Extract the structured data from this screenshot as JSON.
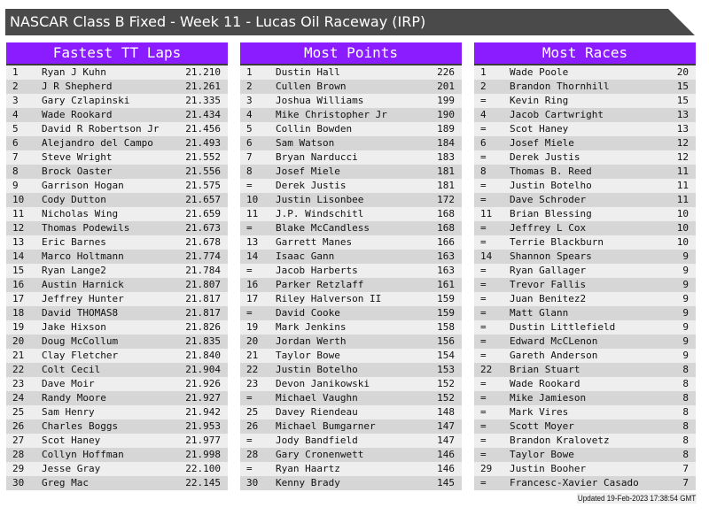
{
  "title": "NASCAR Class B Fixed - Week 11 - Lucas Oil Raceway (IRP)",
  "colors": {
    "header": "#8a1cff",
    "titlebar": "#4a4a4a",
    "row_light": "#eeeeee",
    "row_dark": "#d6d6d6"
  },
  "tables": [
    {
      "heading": "Fastest TT Laps",
      "rows": [
        [
          "1",
          "Ryan J Kuhn",
          "21.210"
        ],
        [
          "2",
          "J R Shepherd",
          "21.261"
        ],
        [
          "3",
          "Gary Czlapinski",
          "21.335"
        ],
        [
          "4",
          "Wade Rookard",
          "21.434"
        ],
        [
          "5",
          "David R Robertson Jr",
          "21.456"
        ],
        [
          "6",
          "Alejandro del Campo",
          "21.493"
        ],
        [
          "7",
          "Steve Wright",
          "21.552"
        ],
        [
          "8",
          "Brock Oaster",
          "21.556"
        ],
        [
          "9",
          "Garrison Hogan",
          "21.575"
        ],
        [
          "10",
          "Cody Dutton",
          "21.657"
        ],
        [
          "11",
          "Nicholas Wing",
          "21.659"
        ],
        [
          "12",
          "Thomas Podewils",
          "21.673"
        ],
        [
          "13",
          "Eric Barnes",
          "21.678"
        ],
        [
          "14",
          "Marco Holtmann",
          "21.774"
        ],
        [
          "15",
          "Ryan Lange2",
          "21.784"
        ],
        [
          "16",
          "Austin Harnick",
          "21.807"
        ],
        [
          "17",
          "Jeffrey Hunter",
          "21.817"
        ],
        [
          "18",
          "David THOMAS8",
          "21.817"
        ],
        [
          "19",
          "Jake Hixson",
          "21.826"
        ],
        [
          "20",
          "Doug McCollum",
          "21.835"
        ],
        [
          "21",
          "Clay Fletcher",
          "21.840"
        ],
        [
          "22",
          "Colt Cecil",
          "21.904"
        ],
        [
          "23",
          "Dave Moir",
          "21.926"
        ],
        [
          "24",
          "Randy Moore",
          "21.927"
        ],
        [
          "25",
          "Sam Henry",
          "21.942"
        ],
        [
          "26",
          "Charles Boggs",
          "21.953"
        ],
        [
          "27",
          "Scot Haney",
          "21.977"
        ],
        [
          "28",
          "Collyn Hoffman",
          "21.998"
        ],
        [
          "29",
          "Jesse Gray",
          "22.100"
        ],
        [
          "30",
          "Greg Mac",
          "22.145"
        ]
      ]
    },
    {
      "heading": "Most Points",
      "rows": [
        [
          "1",
          "Dustin Hall",
          "226"
        ],
        [
          "2",
          "Cullen Brown",
          "201"
        ],
        [
          "3",
          "Joshua Williams",
          "199"
        ],
        [
          "4",
          "Mike Christopher Jr",
          "190"
        ],
        [
          "5",
          "Collin Bowden",
          "189"
        ],
        [
          "6",
          "Sam Watson",
          "184"
        ],
        [
          "7",
          "Bryan Narducci",
          "183"
        ],
        [
          "8",
          "Josef Miele",
          "181"
        ],
        [
          "=",
          "Derek Justis",
          "181"
        ],
        [
          "10",
          "Justin Lisonbee",
          "172"
        ],
        [
          "11",
          "J.P. Windschitl",
          "168"
        ],
        [
          "=",
          "Blake McCandless",
          "168"
        ],
        [
          "13",
          "Garrett Manes",
          "166"
        ],
        [
          "14",
          "Isaac Gann",
          "163"
        ],
        [
          "=",
          "Jacob Harberts",
          "163"
        ],
        [
          "16",
          "Parker Retzlaff",
          "161"
        ],
        [
          "17",
          "Riley Halverson II",
          "159"
        ],
        [
          "=",
          "David Cooke",
          "159"
        ],
        [
          "19",
          "Mark Jenkins",
          "158"
        ],
        [
          "20",
          "Jordan Werth",
          "156"
        ],
        [
          "21",
          "Taylor Bowe",
          "154"
        ],
        [
          "22",
          "Justin Botelho",
          "153"
        ],
        [
          "23",
          "Devon Janikowski",
          "152"
        ],
        [
          "=",
          "Michael Vaughn",
          "152"
        ],
        [
          "25",
          "Davey Riendeau",
          "148"
        ],
        [
          "26",
          "Michael Bumgarner",
          "147"
        ],
        [
          "=",
          "Jody Bandfield",
          "147"
        ],
        [
          "28",
          "Gary Cronenwett",
          "146"
        ],
        [
          "=",
          "Ryan Haartz",
          "146"
        ],
        [
          "30",
          "Kenny Brady",
          "145"
        ]
      ]
    },
    {
      "heading": "Most Races",
      "rows": [
        [
          "1",
          "Wade Poole",
          "20"
        ],
        [
          "2",
          "Brandon Thornhill",
          "15"
        ],
        [
          "=",
          "Kevin Ring",
          "15"
        ],
        [
          "4",
          "Jacob Cartwright",
          "13"
        ],
        [
          "=",
          "Scot Haney",
          "13"
        ],
        [
          "6",
          "Josef Miele",
          "12"
        ],
        [
          "=",
          "Derek Justis",
          "12"
        ],
        [
          "8",
          "Thomas B. Reed",
          "11"
        ],
        [
          "=",
          "Justin Botelho",
          "11"
        ],
        [
          "=",
          "Dave Schroder",
          "11"
        ],
        [
          "11",
          "Brian Blessing",
          "10"
        ],
        [
          "=",
          "Jeffrey L Cox",
          "10"
        ],
        [
          "=",
          "Terrie Blackburn",
          "10"
        ],
        [
          "14",
          "Shannon Spears",
          "9"
        ],
        [
          "=",
          "Ryan Gallager",
          "9"
        ],
        [
          "=",
          "Trevor Fallis",
          "9"
        ],
        [
          "=",
          "Juan Benitez2",
          "9"
        ],
        [
          "=",
          "Matt Glann",
          "9"
        ],
        [
          "=",
          "Dustin Littlefield",
          "9"
        ],
        [
          "=",
          "Edward McCLenon",
          "9"
        ],
        [
          "=",
          "Gareth Anderson",
          "9"
        ],
        [
          "22",
          "Brian Stuart",
          "8"
        ],
        [
          "=",
          "Wade Rookard",
          "8"
        ],
        [
          "=",
          "Mike Jamieson",
          "8"
        ],
        [
          "=",
          "Mark Vires",
          "8"
        ],
        [
          "=",
          "Scott Moyer",
          "8"
        ],
        [
          "=",
          "Brandon Kralovetz",
          "8"
        ],
        [
          "=",
          "Taylor Bowe",
          "8"
        ],
        [
          "29",
          "Justin Booher",
          "7"
        ],
        [
          "=",
          "Francesc-Xavier Casado",
          "7"
        ]
      ]
    }
  ],
  "updated": "Updated 19-Feb-2023 17:38:54 GMT"
}
